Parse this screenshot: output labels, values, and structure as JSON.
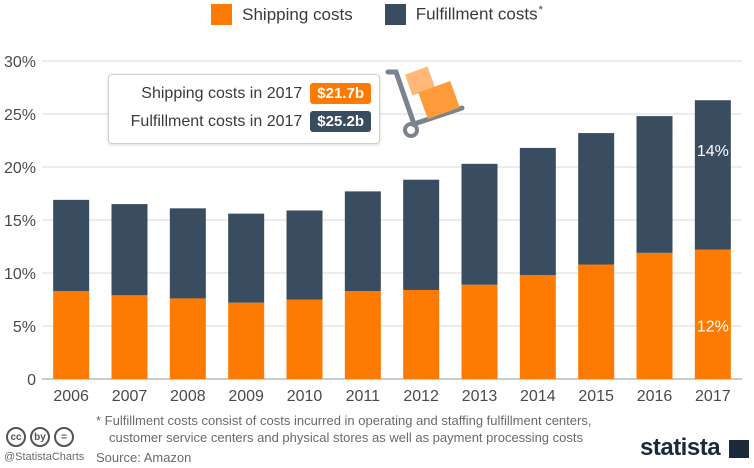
{
  "legend": {
    "shipping_label": "Shipping costs",
    "fulfillment_label": "Fulfillment costs",
    "fulfillment_marker": "*"
  },
  "colors": {
    "shipping": "#ff7a00",
    "fulfillment": "#3a4c5f",
    "grid": "#d9d9d9",
    "axis_text": "#4a4a4a"
  },
  "callout": {
    "shipping_text": "Shipping costs in 2017",
    "shipping_value": "$21.7b",
    "fulfillment_text": "Fulfillment costs in 2017",
    "fulfillment_value": "$25.2b"
  },
  "chart_data": {
    "type": "bar",
    "stacked": true,
    "categories": [
      "2006",
      "2007",
      "2008",
      "2009",
      "2010",
      "2011",
      "2012",
      "2013",
      "2014",
      "2015",
      "2016",
      "2017"
    ],
    "series": [
      {
        "name": "Shipping costs",
        "values": [
          8.3,
          7.9,
          7.6,
          7.2,
          7.5,
          8.3,
          8.4,
          8.9,
          9.8,
          10.8,
          11.9,
          12.2
        ]
      },
      {
        "name": "Fulfillment costs",
        "values": [
          8.6,
          8.6,
          8.5,
          8.4,
          8.4,
          9.4,
          10.4,
          11.4,
          12.0,
          12.4,
          12.9,
          14.1
        ]
      }
    ],
    "yticks": [
      "0",
      "5%",
      "10%",
      "15%",
      "20%",
      "25%",
      "30%"
    ],
    "ytick_values": [
      0,
      5,
      10,
      15,
      20,
      25,
      30
    ],
    "ylim": [
      0,
      30
    ],
    "data_labels": [
      {
        "category": "2017",
        "series": "Shipping costs",
        "text": "12%"
      },
      {
        "category": "2017",
        "series": "Fulfillment costs",
        "text": "14%"
      }
    ]
  },
  "footnote": {
    "line1": "* Fulfillment costs consist of costs incurred in operating and staffing fulfillment centers,",
    "line2": "customer service centers and physical stores as well as payment processing costs"
  },
  "source": "Source: Amazon",
  "handle": "@StatistaCharts",
  "brand": "statista",
  "cc_icons": [
    "cc",
    "by",
    "="
  ]
}
